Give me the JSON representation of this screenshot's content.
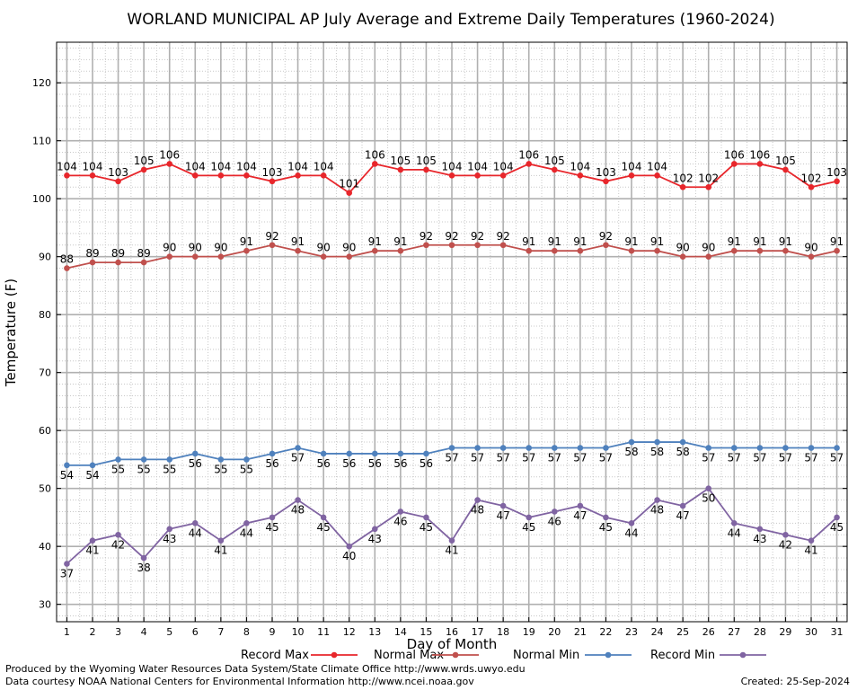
{
  "chart_data": {
    "type": "line",
    "title": "WORLAND MUNICIPAL AP July Average and Extreme Daily Temperatures (1960-2024)",
    "xlabel": "Day of Month",
    "ylabel": "Temperature (F)",
    "x": [
      1,
      2,
      3,
      4,
      5,
      6,
      7,
      8,
      9,
      10,
      11,
      12,
      13,
      14,
      15,
      16,
      17,
      18,
      19,
      20,
      21,
      22,
      23,
      24,
      25,
      26,
      27,
      28,
      29,
      30,
      31
    ],
    "xlim": [
      0.6,
      31.4
    ],
    "ylim": [
      27,
      127
    ],
    "y_ticks": [
      30,
      40,
      50,
      60,
      70,
      80,
      90,
      100,
      110,
      120
    ],
    "grid": true,
    "legend_position": "bottom",
    "series": [
      {
        "name": "Record Max",
        "color": "#e8262b",
        "label_position": "above",
        "values": [
          104,
          104,
          103,
          105,
          106,
          104,
          104,
          104,
          103,
          104,
          104,
          101,
          106,
          105,
          105,
          104,
          104,
          104,
          106,
          105,
          104,
          103,
          104,
          104,
          102,
          102,
          106,
          106,
          105,
          102,
          103
        ]
      },
      {
        "name": "Normal Max",
        "color": "#c0504d",
        "label_position": "above",
        "values": [
          88,
          89,
          89,
          89,
          90,
          90,
          90,
          91,
          92,
          91,
          90,
          90,
          91,
          91,
          92,
          92,
          92,
          92,
          91,
          91,
          91,
          92,
          91,
          91,
          90,
          90,
          91,
          91,
          91,
          90,
          91
        ]
      },
      {
        "name": "Normal Min",
        "color": "#4f81bd",
        "label_position": "below",
        "values": [
          54,
          54,
          55,
          55,
          55,
          56,
          55,
          55,
          56,
          57,
          56,
          56,
          56,
          56,
          56,
          57,
          57,
          57,
          57,
          57,
          57,
          57,
          58,
          58,
          58,
          57,
          57,
          57,
          57,
          57,
          57
        ]
      },
      {
        "name": "Record Min",
        "color": "#8064a2",
        "label_position": "below",
        "values": [
          37,
          41,
          42,
          38,
          43,
          44,
          41,
          44,
          45,
          48,
          45,
          40,
          43,
          46,
          45,
          41,
          48,
          47,
          45,
          46,
          47,
          45,
          44,
          48,
          47,
          50,
          44,
          43,
          42,
          41,
          45
        ]
      }
    ]
  },
  "footer": {
    "produced_by": "Produced by the Wyoming Water Resources Data System/State Climate Office http://www.wrds.uwyo.edu",
    "data_courtesy": "Data courtesy NOAA National Centers for Environmental Information http://www.ncei.noaa.gov",
    "created": "Created:  25-Sep-2024"
  }
}
